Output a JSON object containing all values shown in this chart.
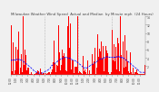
{
  "title": "Milwaukee Weather Wind Speed  Actual and Median  by Minute mph  (24 Hours)",
  "bg_color": "#f0f0f0",
  "bar_color": "#ff0000",
  "line_color": "#0000ff",
  "ylim": [
    0,
    14
  ],
  "yticks": [
    2,
    4,
    6,
    8,
    10,
    12,
    14
  ],
  "n_points": 1440,
  "grid_color": "#888888",
  "text_color": "#444444",
  "title_fontsize": 2.8,
  "tick_fontsize": 2.2
}
